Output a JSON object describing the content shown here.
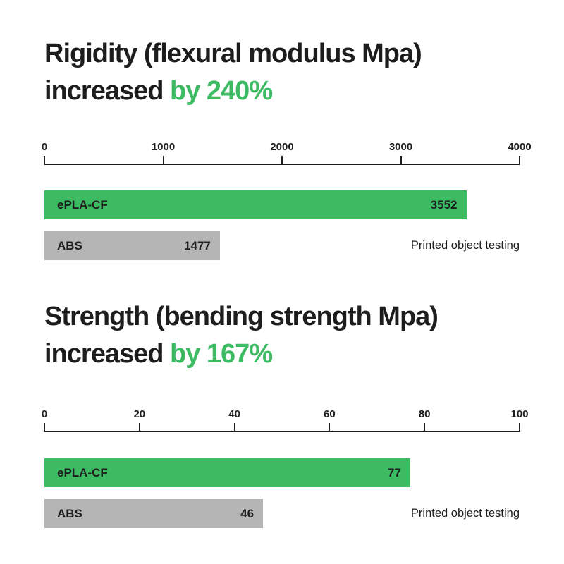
{
  "colors": {
    "accent_green": "#3cbb63",
    "bar_gray": "#b5b5b5",
    "text_dark": "#1d1d1d",
    "background": "#ffffff"
  },
  "chart_data": [
    {
      "type": "bar",
      "orientation": "horizontal",
      "title_line1": "Rigidity (flexural modulus Mpa)",
      "title_line2_plain": "increased",
      "title_line2_highlight": "by 240%",
      "title_full": "Rigidity (flexural modulus Mpa) increased by 240%",
      "categories": [
        "ePLA-CF",
        "ABS"
      ],
      "values": [
        3552,
        1477
      ],
      "value_labels": [
        "3552",
        "1477"
      ],
      "bar_colors": [
        "#3cbb63",
        "#b5b5b5"
      ],
      "axis": {
        "min": 0,
        "max": 4000,
        "ticks": [
          0,
          1000,
          2000,
          3000,
          4000
        ]
      },
      "grid": false,
      "legend_position": "none",
      "note": "Printed object testing"
    },
    {
      "type": "bar",
      "orientation": "horizontal",
      "title_line1": "Strength (bending strength Mpa)",
      "title_line2_plain": "increased",
      "title_line2_highlight": "by 167%",
      "title_full": "Strength (bending strength Mpa) increased by 167%",
      "categories": [
        "ePLA-CF",
        "ABS"
      ],
      "values": [
        77,
        46
      ],
      "value_labels": [
        "77",
        "46"
      ],
      "bar_colors": [
        "#3cbb63",
        "#b5b5b5"
      ],
      "axis": {
        "min": 0,
        "max": 100,
        "ticks": [
          0,
          20,
          40,
          60,
          80,
          100
        ]
      },
      "grid": false,
      "legend_position": "none",
      "note": "Printed object testing"
    }
  ]
}
